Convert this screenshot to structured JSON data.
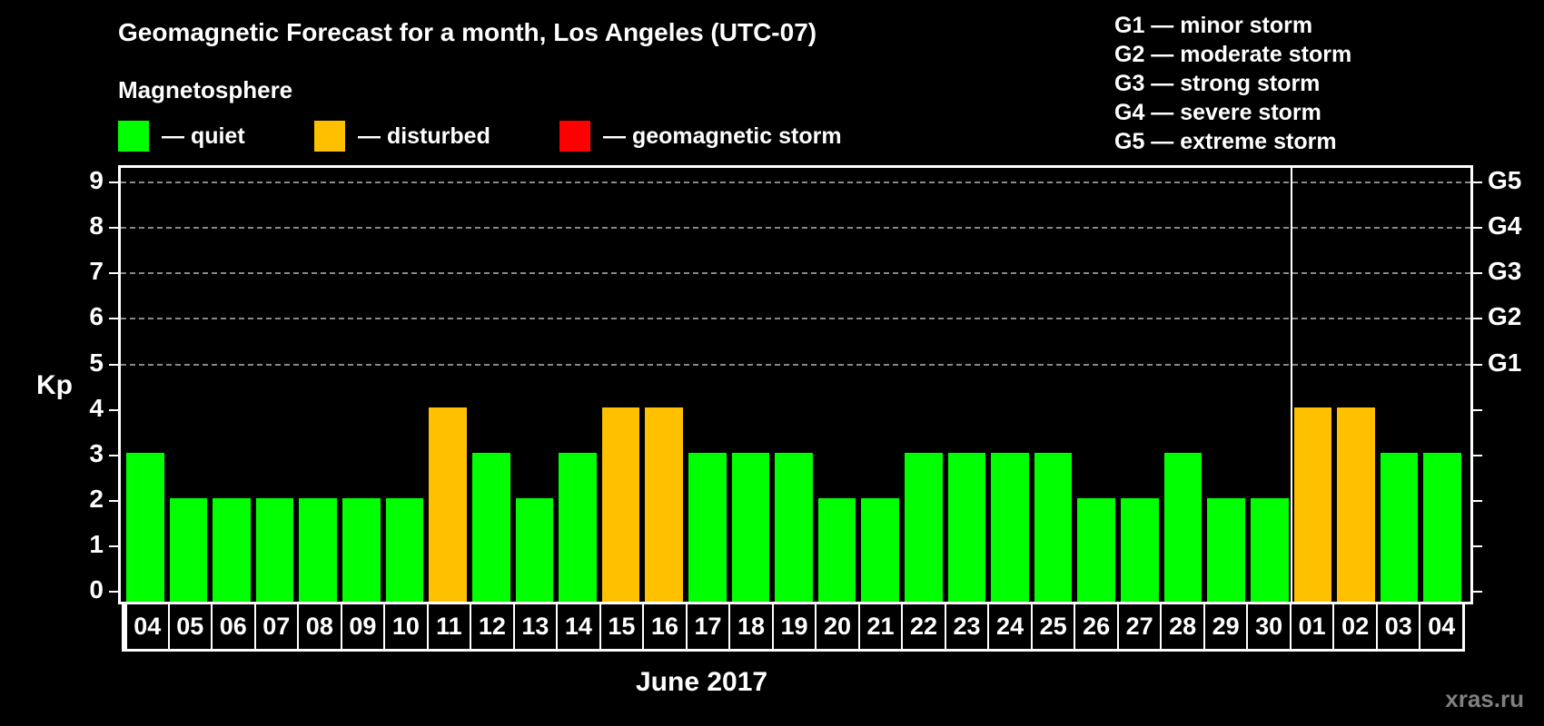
{
  "header": {
    "title": "Geomagnetic Forecast for a month, Los Angeles (UTC-07)",
    "subtitle": "Magnetosphere"
  },
  "legend": {
    "quiet": {
      "label": "— quiet",
      "color": "#00ff00"
    },
    "disturbed": {
      "label": "— disturbed",
      "color": "#ffc000"
    },
    "storm": {
      "label": "— geomagnetic storm",
      "color": "#ff0000"
    }
  },
  "storm_legend": [
    "G1 — minor storm",
    "G2 — moderate storm",
    "G3 — strong storm",
    "G4 — severe storm",
    "G5 — extreme storm"
  ],
  "axis": {
    "y_label": "Kp",
    "y_ticks": [
      "0",
      "1",
      "2",
      "3",
      "4",
      "5",
      "6",
      "7",
      "8",
      "9"
    ],
    "g_ticks": [
      {
        "kp": 5,
        "label": "G1"
      },
      {
        "kp": 6,
        "label": "G2"
      },
      {
        "kp": 7,
        "label": "G3"
      },
      {
        "kp": 8,
        "label": "G4"
      },
      {
        "kp": 9,
        "label": "G5"
      }
    ],
    "x_label": "June 2017"
  },
  "watermark": "xras.ru",
  "chart_data": {
    "type": "bar",
    "title": "Geomagnetic Forecast for a month, Los Angeles (UTC-07)",
    "xlabel": "June 2017",
    "ylabel": "Kp",
    "ylim": [
      0,
      9
    ],
    "grid": "dashed horizontal lines at Kp 5-9",
    "categories": [
      "04",
      "05",
      "06",
      "07",
      "08",
      "09",
      "10",
      "11",
      "12",
      "13",
      "14",
      "15",
      "16",
      "17",
      "18",
      "19",
      "20",
      "21",
      "22",
      "23",
      "24",
      "25",
      "26",
      "27",
      "28",
      "29",
      "30",
      "01",
      "02",
      "03",
      "04"
    ],
    "values": [
      3,
      2,
      2,
      2,
      2,
      2,
      2,
      4,
      3,
      2,
      3,
      4,
      4,
      3,
      3,
      3,
      2,
      2,
      3,
      3,
      3,
      3,
      2,
      2,
      3,
      2,
      2,
      4,
      4,
      3,
      3
    ],
    "status": [
      "quiet",
      "quiet",
      "quiet",
      "quiet",
      "quiet",
      "quiet",
      "quiet",
      "disturbed",
      "quiet",
      "quiet",
      "quiet",
      "disturbed",
      "disturbed",
      "quiet",
      "quiet",
      "quiet",
      "quiet",
      "quiet",
      "quiet",
      "quiet",
      "quiet",
      "quiet",
      "quiet",
      "quiet",
      "quiet",
      "quiet",
      "quiet",
      "disturbed",
      "disturbed",
      "quiet",
      "quiet"
    ],
    "month_divider_after_index": 26,
    "legend": [
      "quiet",
      "disturbed",
      "geomagnetic storm"
    ],
    "secondary_axis": {
      "5": "G1",
      "6": "G2",
      "7": "G3",
      "8": "G4",
      "9": "G5"
    }
  }
}
